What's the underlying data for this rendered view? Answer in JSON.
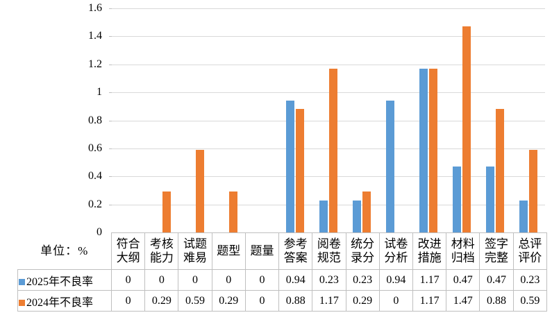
{
  "unit_label": "单位：%",
  "colors": {
    "series_2025": "#5b9bd5",
    "series_2024": "#ed7d31",
    "gridline": "#d9d9d9",
    "table_border": "#bfbfbf"
  },
  "chart_data": {
    "type": "bar",
    "title": "",
    "xlabel": "",
    "ylabel": "",
    "unit": "单位：%",
    "categories": [
      "符合大纲",
      "考核能力",
      "试题难易",
      "题型",
      "题量",
      "参考答案",
      "阅卷规范",
      "统分录分",
      "试卷分析",
      "改进措施",
      "材料归档",
      "签字完整",
      "总评评价"
    ],
    "series": [
      {
        "name": "2025年不良率",
        "color": "#5b9bd5",
        "values": [
          0,
          0,
          0,
          0,
          0,
          0.94,
          0.23,
          0.23,
          0.94,
          1.17,
          0.47,
          0.47,
          0.23
        ]
      },
      {
        "name": "2024年不良率",
        "color": "#ed7d31",
        "values": [
          0,
          0.29,
          0.59,
          0.29,
          0,
          0.88,
          1.17,
          0.29,
          0,
          1.17,
          1.47,
          0.88,
          0.59
        ]
      }
    ],
    "ylim": [
      0,
      1.6
    ],
    "ytick_step": 0.2,
    "ytick_labels": [
      "1.6",
      "1.4",
      "1.2",
      "1",
      "0.8",
      "0.6",
      "0.4",
      "0.2",
      "0"
    ],
    "grid": true,
    "legend_position": "data-table-left",
    "data_table_shown": true
  }
}
